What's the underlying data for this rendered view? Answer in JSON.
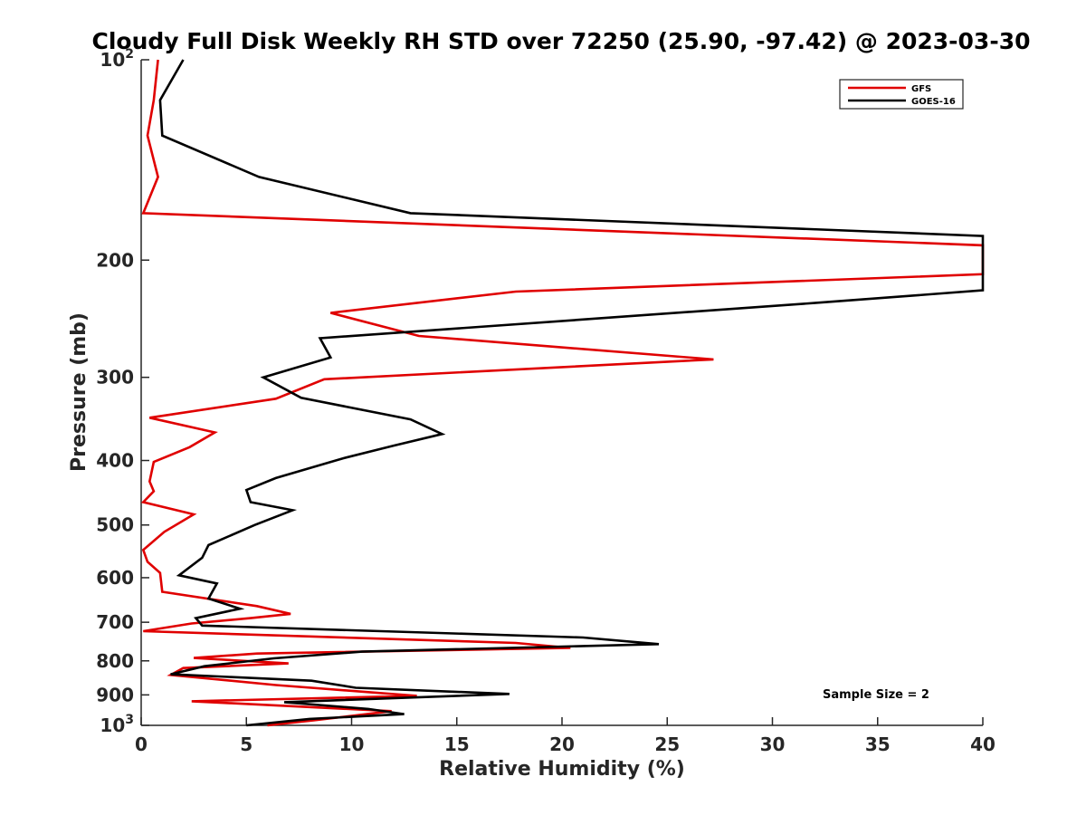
{
  "chart_data": {
    "type": "line",
    "title": "Cloudy Full Disk Weekly RH STD over 72250 (25.90, -97.42) @ 2023-03-30",
    "xlabel": "Relative Humidity (%)",
    "ylabel": "Pressure (mb)",
    "xlim": [
      0,
      40
    ],
    "ylim": [
      100,
      1000
    ],
    "y_scale": "log",
    "y_reversed": true,
    "x_ticks": [
      0,
      5,
      10,
      15,
      20,
      25,
      30,
      35,
      40
    ],
    "y_ticks": [
      {
        "value": 100,
        "base": "10",
        "exp": "2"
      },
      {
        "value": 200,
        "label": "200"
      },
      {
        "value": 300,
        "label": "300"
      },
      {
        "value": 400,
        "label": "400"
      },
      {
        "value": 500,
        "label": "500"
      },
      {
        "value": 600,
        "label": "600"
      },
      {
        "value": 700,
        "label": "700"
      },
      {
        "value": 800,
        "label": "800"
      },
      {
        "value": 900,
        "label": "900"
      },
      {
        "value": 1000,
        "base": "10",
        "exp": "3"
      }
    ],
    "grid": false,
    "legend_position": "top-right",
    "annotation": "Sample Size = 2",
    "series": [
      {
        "name": "GFS",
        "color": "#e00000",
        "points": [
          [
            0.8,
            100
          ],
          [
            0.6,
            115
          ],
          [
            0.3,
            130
          ],
          [
            0.8,
            150
          ],
          [
            0.1,
            170
          ],
          [
            40,
            190
          ],
          [
            40,
            210
          ],
          [
            17.8,
            223
          ],
          [
            9.0,
            240
          ],
          [
            13.2,
            260
          ],
          [
            27.2,
            282
          ],
          [
            8.7,
            302
          ],
          [
            6.4,
            323
          ],
          [
            0.4,
            345
          ],
          [
            3.5,
            363
          ],
          [
            2.3,
            382
          ],
          [
            0.6,
            402
          ],
          [
            0.4,
            430
          ],
          [
            0.6,
            445
          ],
          [
            0.1,
            462
          ],
          [
            2.5,
            482
          ],
          [
            1.1,
            512
          ],
          [
            0.1,
            545
          ],
          [
            0.3,
            568
          ],
          [
            0.9,
            590
          ],
          [
            1.0,
            630
          ],
          [
            5.5,
            662
          ],
          [
            7.1,
            680
          ],
          [
            5.2,
            690
          ],
          [
            2.4,
            703
          ],
          [
            0.1,
            722
          ],
          [
            17.8,
            752
          ],
          [
            20.4,
            765
          ],
          [
            5.5,
            780
          ],
          [
            2.5,
            792
          ],
          [
            7.0,
            807
          ],
          [
            2.0,
            820
          ],
          [
            1.4,
            840
          ],
          [
            6.4,
            870
          ],
          [
            13.1,
            903
          ],
          [
            2.4,
            920
          ],
          [
            11.9,
            952
          ],
          [
            8.2,
            983
          ],
          [
            6.0,
            1000
          ]
        ]
      },
      {
        "name": "GOES-16",
        "color": "#000000",
        "points": [
          [
            2.0,
            100
          ],
          [
            0.9,
            115
          ],
          [
            1.0,
            130
          ],
          [
            5.6,
            150
          ],
          [
            12.8,
            170
          ],
          [
            40,
            184
          ],
          [
            40,
            222
          ],
          [
            32.0,
            232
          ],
          [
            8.5,
            262
          ],
          [
            9.0,
            280
          ],
          [
            5.8,
            300
          ],
          [
            7.6,
            322
          ],
          [
            12.8,
            347
          ],
          [
            14.3,
            365
          ],
          [
            12.0,
            380
          ],
          [
            9.6,
            397
          ],
          [
            6.4,
            425
          ],
          [
            5.0,
            443
          ],
          [
            5.2,
            462
          ],
          [
            7.2,
            475
          ],
          [
            5.4,
            500
          ],
          [
            3.2,
            536
          ],
          [
            2.9,
            560
          ],
          [
            1.8,
            595
          ],
          [
            3.6,
            612
          ],
          [
            3.2,
            645
          ],
          [
            4.7,
            668
          ],
          [
            2.6,
            690
          ],
          [
            2.9,
            708
          ],
          [
            21.0,
            738
          ],
          [
            24.6,
            755
          ],
          [
            10.5,
            775
          ],
          [
            6.3,
            793
          ],
          [
            3.0,
            815
          ],
          [
            1.4,
            838
          ],
          [
            8.1,
            857
          ],
          [
            10.2,
            878
          ],
          [
            17.5,
            897
          ],
          [
            6.8,
            923
          ],
          [
            10.8,
            945
          ],
          [
            12.5,
            962
          ],
          [
            8.0,
            978
          ],
          [
            5.0,
            1000
          ]
        ]
      }
    ]
  }
}
